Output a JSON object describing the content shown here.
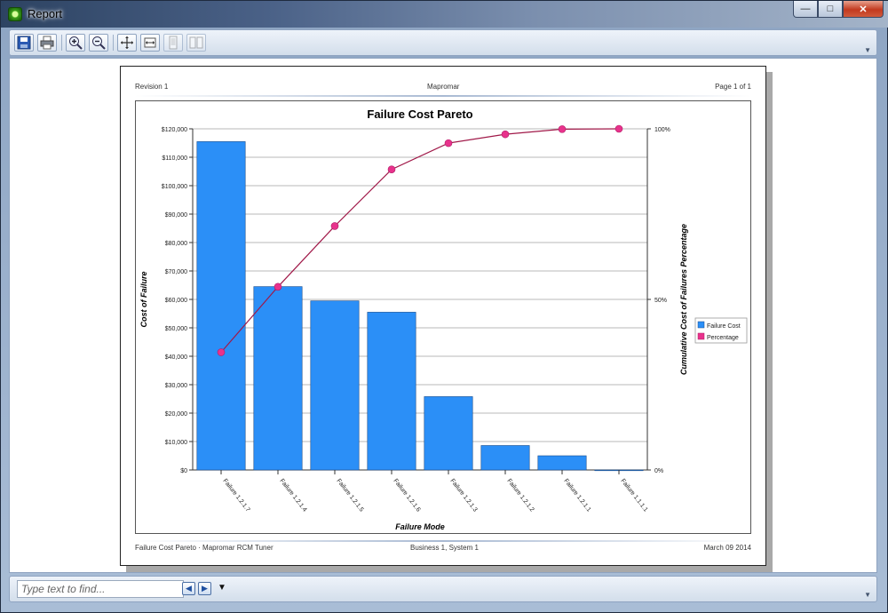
{
  "window": {
    "title": "Report",
    "icon": "gear-app-icon",
    "min_label": "—",
    "max_label": "□",
    "close_label": "✕"
  },
  "toolbar": {
    "buttons": [
      "save-icon",
      "print-icon",
      "zoom-in-icon",
      "zoom-out-icon",
      "fit-page-icon",
      "fit-width-icon",
      "single-page-icon",
      "two-page-icon"
    ]
  },
  "report": {
    "header_left": "Revision 1",
    "header_center": "Mapromar",
    "header_right": "Page 1 of 1",
    "footer_left": "Failure Cost Pareto · Mapromar RCM Tuner",
    "footer_center": "Business 1, System 1",
    "footer_right": "March 09 2014"
  },
  "find": {
    "placeholder": "Type text to find..."
  },
  "colors": {
    "bar": "#2b8ff7",
    "line": "#a01848",
    "marker": "#e8328c"
  },
  "chart_data": {
    "type": "bar",
    "title": "Failure Cost Pareto",
    "xlabel": "Failure Mode",
    "ylabel": "Cost of Failure",
    "y2label": "Cumulative Cost of Failures Percentage",
    "categories": [
      "Failure 1.2.1.7",
      "Failure 1.2.1.4",
      "Failure 1.2.1.5",
      "Failure 1.2.1.6",
      "Failure 1.2.1.3",
      "Failure 1.2.1.2",
      "Failure 1.2.1.1",
      "Failure 1.1.1.1"
    ],
    "ylim": [
      0,
      120000
    ],
    "yticks": [
      "$0",
      "$10,000",
      "$20,000",
      "$30,000",
      "$40,000",
      "$50,000",
      "$60,000",
      "$70,000",
      "$80,000",
      "$90,000",
      "$100,000",
      "$110,000",
      "$120,000"
    ],
    "y2lim": [
      0,
      100
    ],
    "y2ticks": [
      "0%",
      "50%",
      "100%"
    ],
    "grid": true,
    "legend": "right",
    "series": [
      {
        "name": "Failure Cost",
        "type": "bar",
        "values": [
          115500,
          64500,
          59500,
          55500,
          25800,
          8600,
          5000,
          0
        ]
      },
      {
        "name": "Percentage",
        "type": "line",
        "values": [
          34.5,
          53.7,
          71.5,
          88.1,
          95.8,
          98.4,
          99.9,
          100
        ]
      }
    ]
  }
}
